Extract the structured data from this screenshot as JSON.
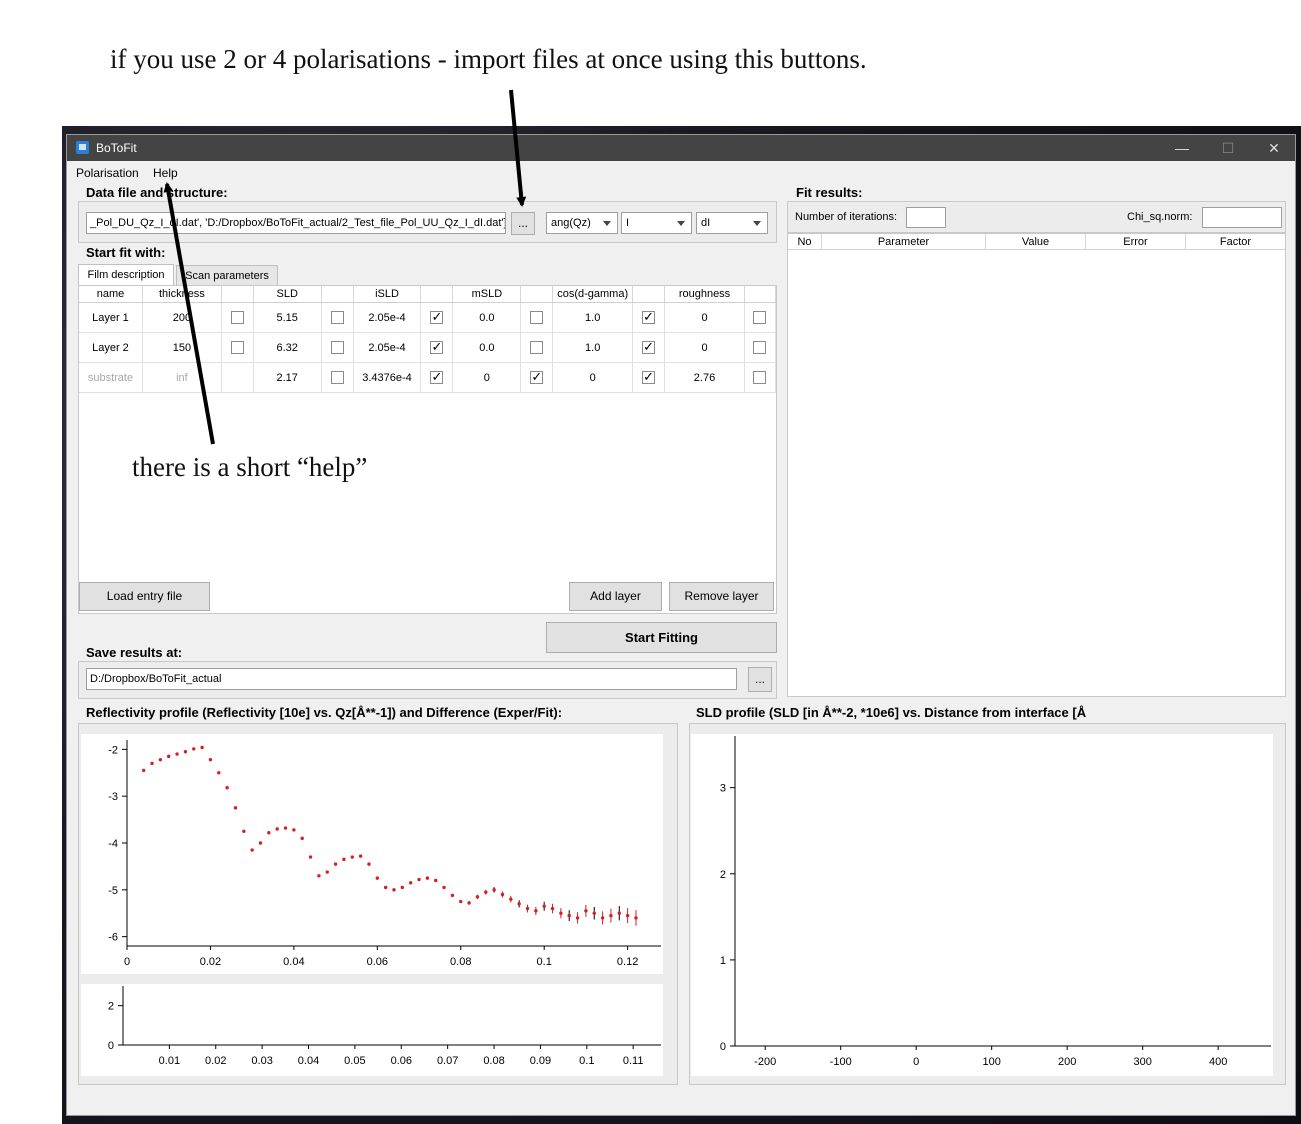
{
  "annotations": {
    "top": "if you use 2 or 4 polarisations - import files at once using this buttons.",
    "help": "there is a short “help”"
  },
  "window": {
    "title": "BoToFit",
    "minimize": "—",
    "maximize": "☐",
    "close": "✕"
  },
  "menu": {
    "polarisation": "Polarisation",
    "help": "Help"
  },
  "data_file": {
    "label": "Data file and structure:",
    "path": "_Pol_DU_Qz_I_dI.dat', 'D:/Dropbox/BoToFit_actual/2_Test_file_Pol_UU_Qz_I_dI.dat']",
    "browse": "...",
    "combos": [
      "ang(Qz)",
      "I",
      "dI"
    ]
  },
  "start_fit": {
    "label": "Start fit with:",
    "tabs": [
      "Film description",
      "Scan parameters"
    ],
    "headers": [
      "name",
      "thickness",
      "",
      "SLD",
      "",
      "iSLD",
      "",
      "mSLD",
      "",
      "cos(d-gamma)",
      "",
      "roughness",
      ""
    ],
    "rows": [
      {
        "name": "Layer 1",
        "thickness": "200",
        "thickness_chk": false,
        "sld": "5.15",
        "sld_chk": false,
        "isld": "2.05e-4",
        "isld_chk": true,
        "msld": "0.0",
        "msld_chk": false,
        "cos": "1.0",
        "cos_chk": true,
        "rough": "0",
        "rough_chk": false
      },
      {
        "name": "Layer 2",
        "thickness": "150",
        "thickness_chk": false,
        "sld": "6.32",
        "sld_chk": false,
        "isld": "2.05e-4",
        "isld_chk": true,
        "msld": "0.0",
        "msld_chk": false,
        "cos": "1.0",
        "cos_chk": true,
        "rough": "0",
        "rough_chk": false
      },
      {
        "name": "substrate",
        "thickness": "inf",
        "thickness_chk": null,
        "sld": "2.17",
        "sld_chk": false,
        "isld": "3.4376e-4",
        "isld_chk": true,
        "msld": "0",
        "msld_chk": true,
        "cos": "0",
        "cos_chk": true,
        "rough": "2.76",
        "rough_chk": false
      }
    ],
    "load_entry": "Load entry file",
    "add_layer": "Add layer",
    "remove_layer": "Remove layer",
    "start_fitting": "Start Fitting"
  },
  "save": {
    "label": "Save results at:",
    "path": "D:/Dropbox/BoToFit_actual",
    "browse": "..."
  },
  "fit_results": {
    "label": "Fit results:",
    "iterations_label": "Number of iterations:",
    "iterations_value": "",
    "chi_label": "Chi_sq.norm:",
    "chi_value": "",
    "headers": [
      "No",
      "Parameter",
      "Value",
      "Error",
      "Factor"
    ]
  },
  "refl_title": "Reflectivity profile (Reflectivity [10e] vs. Qz[Å**-1]) and Difference (Exper/Fit):",
  "sld_title": "SLD profile (SLD [in Å**-2, *10e6] vs. Distance from interface [Å",
  "chart_data": [
    {
      "type": "scatter",
      "xlim": [
        0,
        0.128
      ],
      "ylim": [
        -6.2,
        -1.8
      ],
      "x_ticks": [
        "0",
        "0.02",
        "0.04",
        "0.06",
        "0.08",
        "0.1",
        "0.12"
      ],
      "y_ticks": [
        "-2",
        "-3",
        "-4",
        "-5",
        "-6"
      ],
      "series": [
        {
          "color": "#d42020",
          "x": [
            0.004,
            0.006,
            0.008,
            0.01,
            0.012,
            0.014,
            0.016,
            0.018,
            0.02,
            0.022,
            0.024,
            0.026,
            0.028,
            0.03,
            0.032,
            0.034,
            0.036,
            0.038,
            0.04,
            0.042,
            0.044,
            0.046,
            0.048,
            0.05,
            0.052,
            0.054,
            0.056,
            0.058,
            0.06,
            0.062,
            0.064,
            0.066,
            0.068,
            0.07,
            0.072,
            0.074,
            0.076,
            0.078,
            0.08,
            0.082,
            0.084,
            0.086,
            0.088,
            0.09,
            0.092,
            0.094,
            0.096,
            0.098,
            0.1,
            0.102,
            0.104,
            0.106,
            0.108,
            0.11,
            0.112,
            0.114,
            0.116,
            0.118,
            0.12,
            0.122
          ],
          "y": [
            -2.45,
            -2.3,
            -2.22,
            -2.15,
            -2.1,
            -2.05,
            -1.99,
            -1.96,
            -2.22,
            -2.5,
            -2.82,
            -3.25,
            -3.75,
            -4.15,
            -4.0,
            -3.78,
            -3.7,
            -3.68,
            -3.72,
            -3.9,
            -4.3,
            -4.7,
            -4.62,
            -4.45,
            -4.35,
            -4.3,
            -4.28,
            -4.45,
            -4.75,
            -4.95,
            -5.0,
            -4.95,
            -4.85,
            -4.78,
            -4.75,
            -4.8,
            -4.95,
            -5.12,
            -5.25,
            -5.28,
            -5.15,
            -5.05,
            -5.0,
            -5.1,
            -5.2,
            -5.3,
            -5.4,
            -5.45,
            -5.35,
            -5.4,
            -5.5,
            -5.55,
            -5.6,
            -5.45,
            -5.5,
            -5.6,
            -5.55,
            -5.5,
            -5.55,
            -5.6
          ]
        }
      ]
    },
    {
      "type": "line",
      "xlim": [
        0,
        0.116
      ],
      "ylim": [
        0,
        3
      ],
      "x_ticks": [
        "0.01",
        "0.02",
        "0.03",
        "0.04",
        "0.05",
        "0.06",
        "0.07",
        "0.08",
        "0.09",
        "0.1",
        "0.11"
      ],
      "y_ticks": [
        "2",
        "0"
      ]
    },
    {
      "type": "line",
      "xlim": [
        -240,
        470
      ],
      "ylim": [
        0,
        3.6
      ],
      "x_ticks": [
        "-200",
        "-100",
        "0",
        "100",
        "200",
        "300",
        "400"
      ],
      "y_ticks": [
        "3",
        "2",
        "1",
        "0"
      ]
    }
  ]
}
